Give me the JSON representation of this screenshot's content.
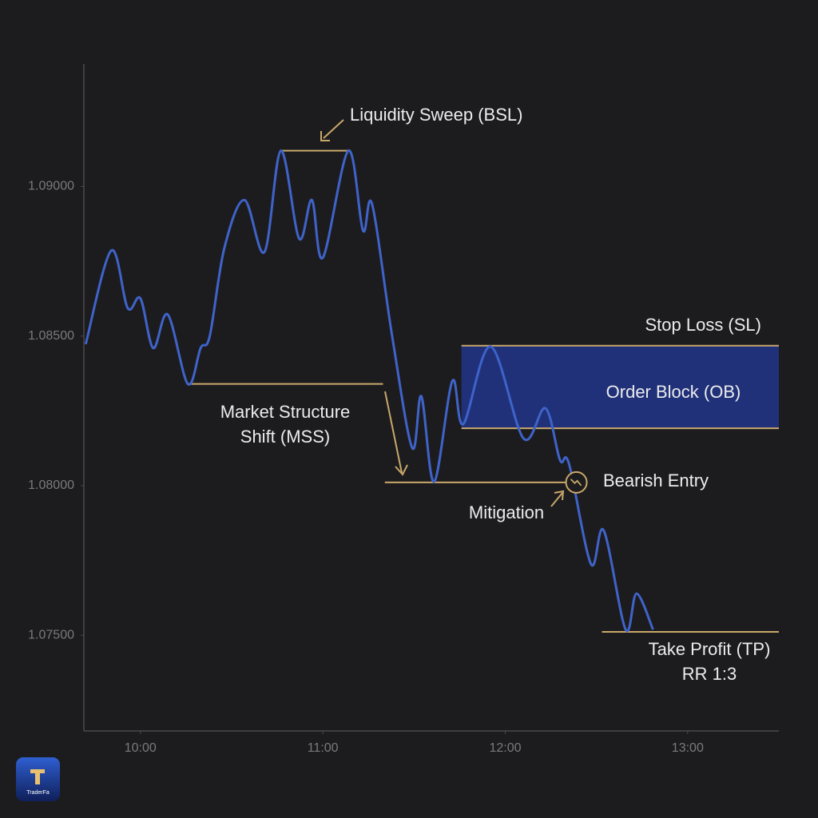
{
  "chart_data": {
    "type": "line",
    "x": [
      9.7,
      9.84,
      9.93,
      10.0,
      10.07,
      10.15,
      10.26,
      10.33,
      10.38,
      10.46,
      10.57,
      10.68,
      10.77,
      10.87,
      10.94,
      11.0,
      11.14,
      11.22,
      11.27,
      11.38,
      11.49,
      11.54,
      11.61,
      11.71,
      11.77,
      11.92,
      12.1,
      12.22,
      12.3,
      12.35,
      12.47,
      12.54,
      12.66,
      12.72,
      12.81
    ],
    "series": [
      {
        "color": "#3f63c9",
        "values": [
          1.08473,
          1.08786,
          1.08594,
          1.08626,
          1.0846,
          1.08572,
          1.0834,
          1.0846,
          1.085,
          1.08794,
          1.08955,
          1.08781,
          1.0912,
          1.08826,
          1.08955,
          1.08762,
          1.0912,
          1.08853,
          1.08941,
          1.085,
          1.08126,
          1.08299,
          1.08013,
          1.0835,
          1.08206,
          1.08465,
          1.08158,
          1.08259,
          1.08086,
          1.08072,
          1.07738,
          1.0785,
          1.07519,
          1.07639,
          1.07519
        ]
      }
    ],
    "xlim": [
      9.69,
      13.5
    ],
    "ylim": [
      1.0718,
      1.0941
    ],
    "xticks": [
      {
        "value": 10,
        "label": "10:00"
      },
      {
        "value": 11,
        "label": "11:00"
      },
      {
        "value": 12,
        "label": "12:00"
      },
      {
        "value": 13,
        "label": "13:00"
      }
    ],
    "yticks": [
      {
        "value": 1.09,
        "label": "1.09000"
      },
      {
        "value": 1.085,
        "label": "1.08500"
      },
      {
        "value": 1.08,
        "label": "1.08000"
      },
      {
        "value": 1.075,
        "label": "1.07500"
      }
    ],
    "level_color": "#c9a86a",
    "levels": [
      {
        "label": "Liquidity Sweep (BSL)",
        "y": 1.0912,
        "x": [
          10.77,
          11.15
        ]
      },
      {
        "label": [
          "Market Structure",
          "Shift (MSS)"
        ],
        "y": 1.0834,
        "x": [
          10.26,
          11.33
        ]
      },
      {
        "label": "Mitigation",
        "y": 1.08011,
        "x": [
          11.34,
          12.39
        ]
      },
      {
        "label": [
          "Take Profit (TP)",
          "RR 1:3"
        ],
        "y": 1.07511,
        "x": [
          12.53,
          13.5
        ]
      }
    ],
    "zone": {
      "label": "Order Block (OB)",
      "top_label": "Stop Loss (SL)",
      "color": "#21358a",
      "y": [
        1.08192,
        1.08468
      ],
      "x": [
        11.76,
        13.5
      ]
    },
    "entry": {
      "label": "Bearish Entry",
      "x": 12.39,
      "y": 1.08011
    }
  },
  "logo": "TraderFa"
}
